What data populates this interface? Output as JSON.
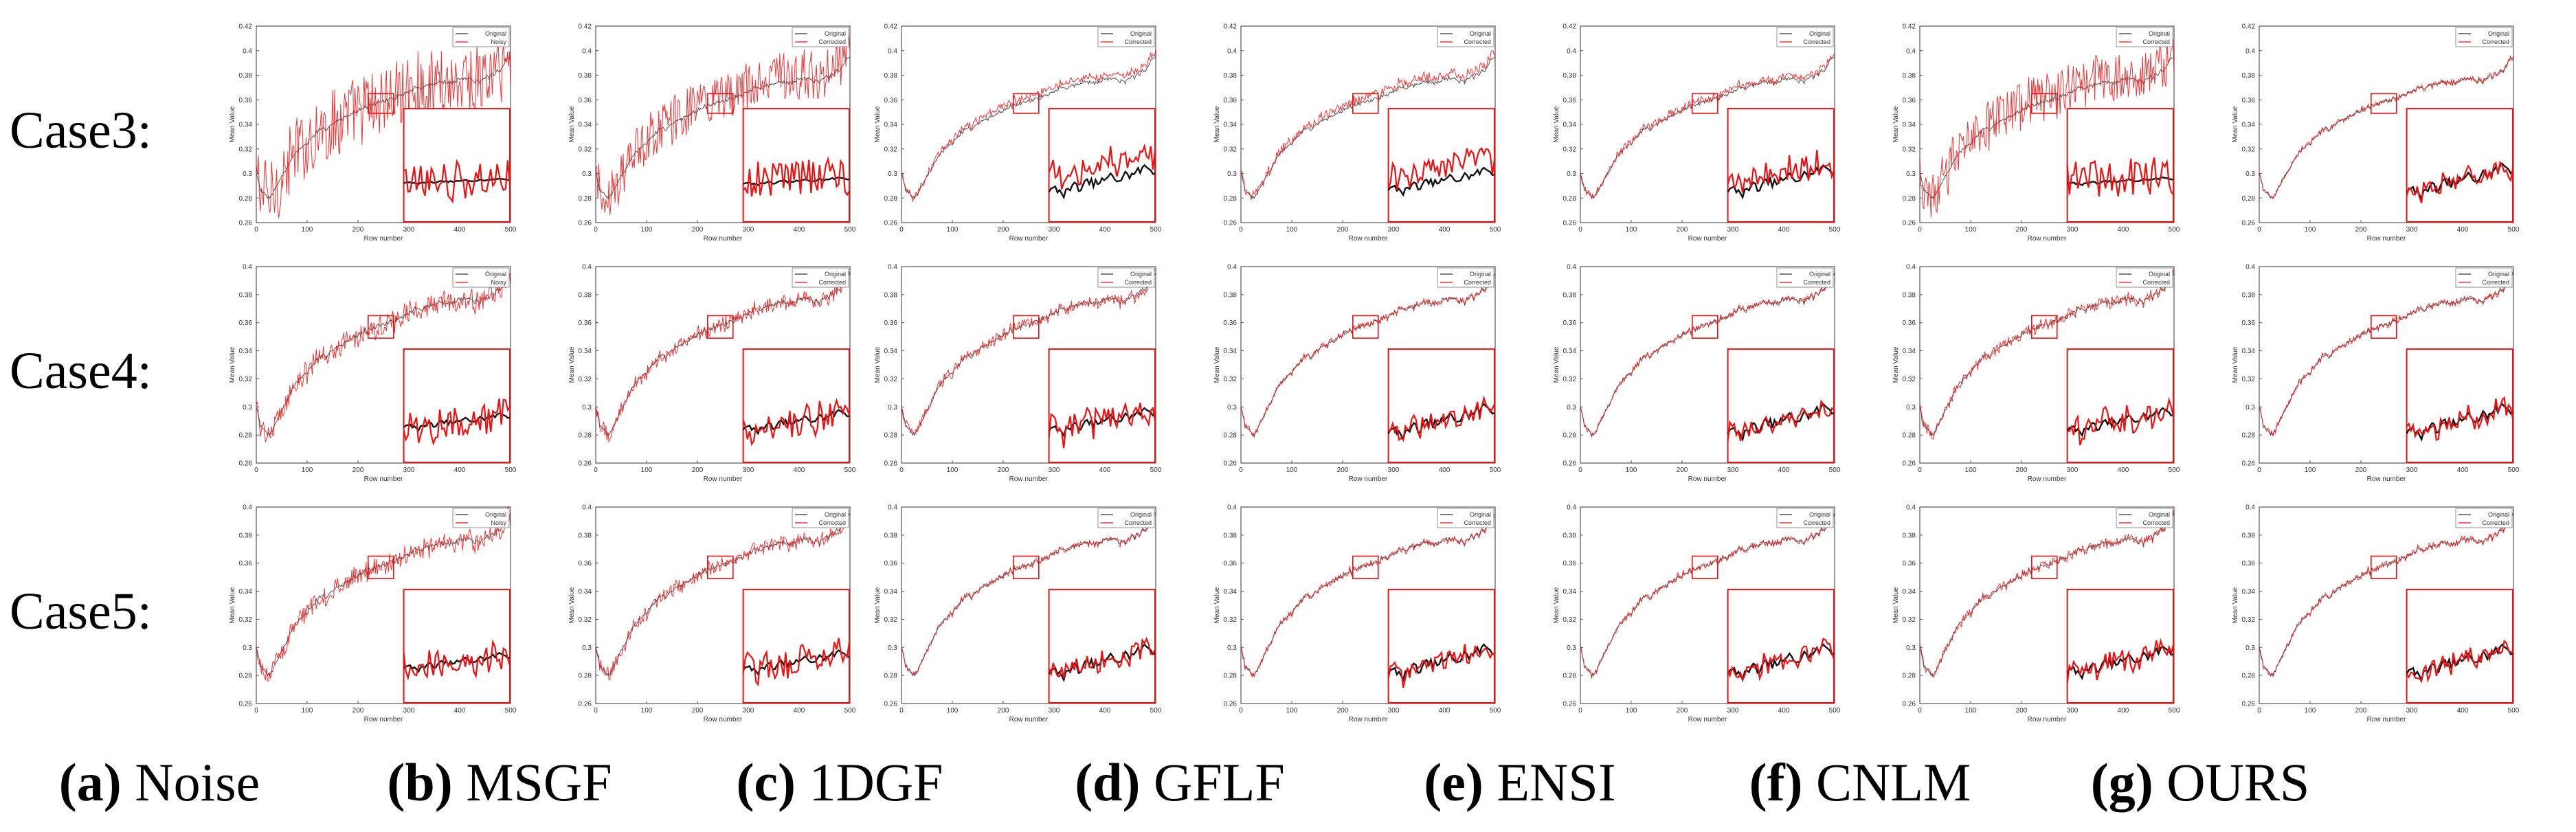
{
  "figure": {
    "row_labels": [
      "Case3:",
      "Case4:",
      "Case5:"
    ],
    "column_labels": [
      {
        "letter": "(a)",
        "name": "Noise"
      },
      {
        "letter": "(b)",
        "name": "MSGF"
      },
      {
        "letter": "(c)",
        "name": "1DGF"
      },
      {
        "letter": "(d)",
        "name": "GFLF"
      },
      {
        "letter": "(e)",
        "name": "ENSI"
      },
      {
        "letter": "(f)",
        "name": "CNLM"
      },
      {
        "letter": "(g)",
        "name": "OURS"
      }
    ]
  },
  "chart_data": {
    "type": "line",
    "xlabel": "Row number",
    "ylabel": "Mean Value",
    "xlim": [
      0,
      500
    ],
    "xticks": [
      "0",
      "100",
      "200",
      "300",
      "400",
      "500"
    ],
    "ylims_by_row": [
      [
        0.26,
        0.42
      ],
      [
        0.26,
        0.4
      ],
      [
        0.26,
        0.4
      ]
    ],
    "yticks_by_row": [
      [
        "0.26",
        "0.28",
        "0.3",
        "0.32",
        "0.34",
        "0.36",
        "0.38",
        "0.4",
        "0.42"
      ],
      [
        "0.26",
        "0.28",
        "0.3",
        "0.32",
        "0.34",
        "0.36",
        "0.38",
        "0.4"
      ],
      [
        "0.26",
        "0.28",
        "0.3",
        "0.32",
        "0.34",
        "0.36",
        "0.38",
        "0.4"
      ]
    ],
    "zoom_region": {
      "x": [
        220,
        270
      ],
      "y": [
        0.349,
        0.365
      ]
    },
    "legend_position": "top-right",
    "colors": {
      "original": "#333333",
      "processed": "#ee1111"
    },
    "legend_sets": {
      "noisy": [
        "Original",
        "Noisy"
      ],
      "corrected": [
        "Original",
        "Corrected"
      ]
    },
    "original_curve": {
      "x": [
        0,
        10,
        25,
        40,
        60,
        80,
        100,
        120,
        140,
        160,
        180,
        200,
        220,
        240,
        260,
        280,
        300,
        320,
        340,
        360,
        380,
        400,
        420,
        440,
        460,
        480,
        490,
        500
      ],
      "y": [
        0.3,
        0.285,
        0.28,
        0.29,
        0.305,
        0.318,
        0.325,
        0.333,
        0.338,
        0.343,
        0.347,
        0.352,
        0.355,
        0.357,
        0.36,
        0.363,
        0.367,
        0.37,
        0.372,
        0.375,
        0.373,
        0.377,
        0.378,
        0.375,
        0.379,
        0.383,
        0.391,
        0.397
      ]
    },
    "noise_amplitude_by_cell": [
      [
        0.03,
        0.02,
        0.003,
        0.004,
        0.003,
        0.02,
        0.002
      ],
      [
        0.008,
        0.005,
        0.004,
        0.002,
        0.002,
        0.004,
        0.002
      ],
      [
        0.007,
        0.005,
        0.002,
        0.002,
        0.002,
        0.003,
        0.002
      ]
    ],
    "bias_by_cell": [
      [
        0.0,
        0.004,
        0.004,
        0.004,
        0.002,
        0.004,
        0.0
      ],
      [
        0.0,
        0.0,
        0.0,
        0.0,
        0.0,
        0.0,
        0.0
      ],
      [
        0.0,
        0.0,
        0.0,
        0.0,
        0.0,
        0.0,
        0.0
      ]
    ]
  }
}
